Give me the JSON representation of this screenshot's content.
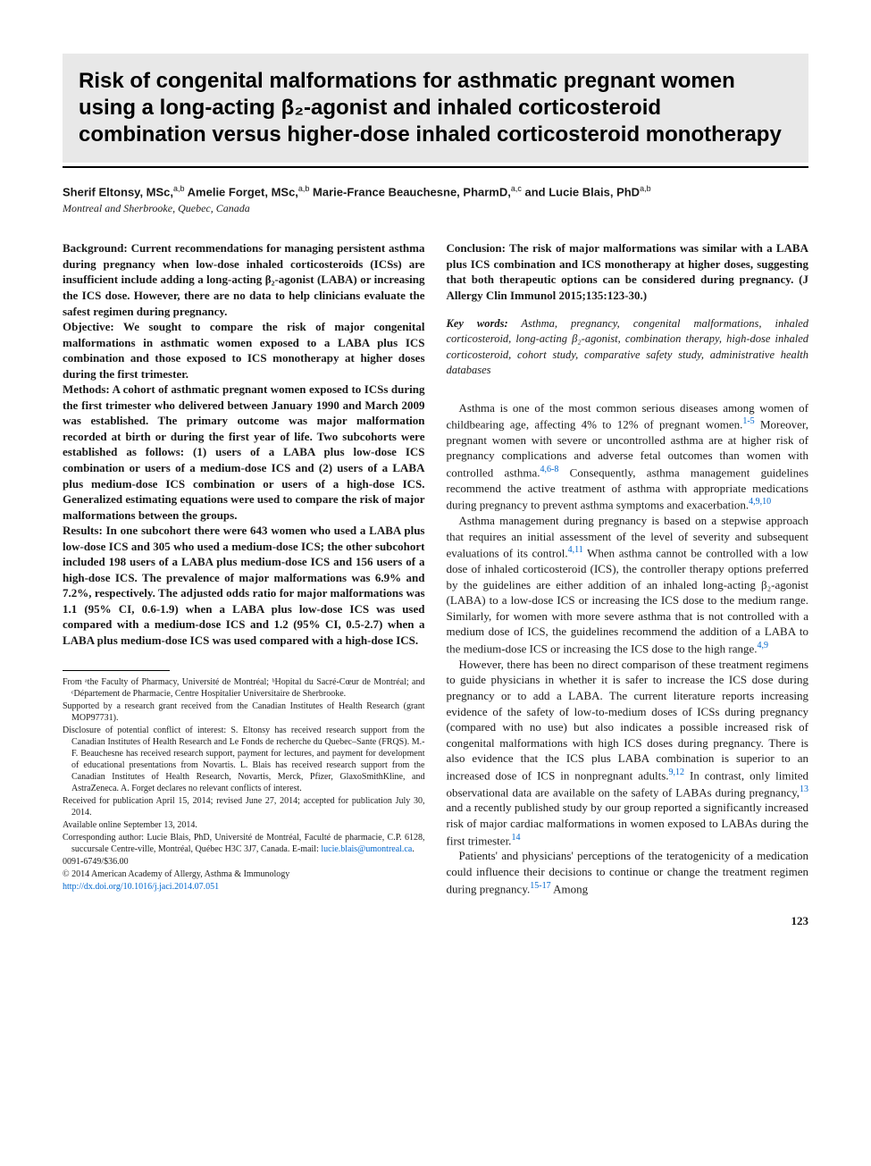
{
  "title": "Risk of congenital malformations for asthmatic pregnant women using a long-acting β₂-agonist and inhaled corticosteroid combination versus higher-dose inhaled corticosteroid monotherapy",
  "authors_html": "Sherif Eltonsy, MSc,<sup>a,b</sup> Amelie Forget, MSc,<sup>a,b</sup> Marie-France Beauchesne, PharmD,<sup>a,c</sup> and Lucie Blais, PhD<sup>a,b</sup>",
  "affiliation_location": "Montreal and Sherbrooke, Quebec, Canada",
  "abstract": {
    "background": "Current recommendations for managing persistent asthma during pregnancy when low-dose inhaled corticosteroids (ICSs) are insufficient include adding a long-acting β₂-agonist (LABA) or increasing the ICS dose. However, there are no data to help clinicians evaluate the safest regimen during pregnancy.",
    "objective": "We sought to compare the risk of major congenital malformations in asthmatic women exposed to a LABA plus ICS combination and those exposed to ICS monotherapy at higher doses during the first trimester.",
    "methods": "A cohort of asthmatic pregnant women exposed to ICSs during the first trimester who delivered between January 1990 and March 2009 was established. The primary outcome was major malformation recorded at birth or during the first year of life. Two subcohorts were established as follows: (1) users of a LABA plus low-dose ICS combination or users of a medium-dose ICS and (2) users of a LABA plus medium-dose ICS combination or users of a high-dose ICS. Generalized estimating equations were used to compare the risk of major malformations between the groups.",
    "results": "In one subcohort there were 643 women who used a LABA plus low-dose ICS and 305 who used a medium-dose ICS; the other subcohort included 198 users of a LABA plus medium-dose ICS and 156 users of a high-dose ICS. The prevalence of major malformations was 6.9% and 7.2%, respectively. The adjusted odds ratio for major malformations was 1.1 (95% CI, 0.6-1.9) when a LABA plus low-dose ICS was used compared with a medium-dose ICS and 1.2 (95% CI, 0.5-2.7) when a LABA plus medium-dose ICS was used compared with a high-dose ICS.",
    "conclusion": "The risk of major malformations was similar with a LABA plus ICS combination and ICS monotherapy at higher doses, suggesting that both therapeutic options can be considered during pregnancy. (J Allergy Clin Immunol 2015;135:123-30.)"
  },
  "keywords_label": "Key words:",
  "keywords": "Asthma, pregnancy, congenital malformations, inhaled corticosteroid, long-acting β₂-agonist, combination therapy, high-dose inhaled corticosteroid, cohort study, comparative safety study, administrative health databases",
  "body": {
    "p1_a": "Asthma is one of the most common serious diseases among women of childbearing age, affecting 4% to 12% of pregnant women.",
    "p1_ref1": "1-5",
    "p1_b": " Moreover, pregnant women with severe or uncontrolled asthma are at higher risk of pregnancy complications and adverse fetal outcomes than women with controlled asthma.",
    "p1_ref2": "4,6-8",
    "p1_c": " Consequently, asthma management guidelines recommend the active treatment of asthma with appropriate medications during pregnancy to prevent asthma symptoms and exacerbation.",
    "p1_ref3": "4,9,10",
    "p2_a": "Asthma management during pregnancy is based on a stepwise approach that requires an initial assessment of the level of severity and subsequent evaluations of its control.",
    "p2_ref1": "4,11",
    "p2_b": " When asthma cannot be controlled with a low dose of inhaled corticosteroid (ICS), the controller therapy options preferred by the guidelines are either addition of an inhaled long-acting β₂-agonist (LABA) to a low-dose ICS or increasing the ICS dose to the medium range. Similarly, for women with more severe asthma that is not controlled with a medium dose of ICS, the guidelines recommend the addition of a LABA to the medium-dose ICS or increasing the ICS dose to the high range.",
    "p2_ref2": "4,9",
    "p3_a": "However, there has been no direct comparison of these treatment regimens to guide physicians in whether it is safer to increase the ICS dose during pregnancy or to add a LABA. The current literature reports increasing evidence of the safety of low-to-medium doses of ICSs during pregnancy (compared with no use) but also indicates a possible increased risk of congenital malformations with high ICS doses during pregnancy. There is also evidence that the ICS plus LABA combination is superior to an increased dose of ICS in nonpregnant adults.",
    "p3_ref1": "9,12",
    "p3_b": " In contrast, only limited observational data are available on the safety of LABAs during pregnancy,",
    "p3_ref2": "13",
    "p3_c": " and a recently published study by our group reported a significantly increased risk of major cardiac malformations in women exposed to LABAs during the first trimester.",
    "p3_ref3": "14",
    "p4_a": "Patients' and physicians' perceptions of the teratogenicity of a medication could influence their decisions to continue or change the treatment regimen during pregnancy.",
    "p4_ref1": "15-17",
    "p4_b": " Among"
  },
  "footnotes": {
    "from": "From ᵃthe Faculty of Pharmacy, Université de Montréal; ᵇHopital du Sacré-Cœur de Montréal; and ᶜDépartement de Pharmacie, Centre Hospitalier Universitaire de Sherbrooke.",
    "supported": "Supported by a research grant received from the Canadian Institutes of Health Research (grant MOP97731).",
    "disclosure": "Disclosure of potential conflict of interest: S. Eltonsy has received research support from the Canadian Institutes of Health Research and Le Fonds de recherche du Quebec–Sante (FRQS). M.-F. Beauchesne has received research support, payment for lectures, and payment for development of educational presentations from Novartis. L. Blais has received research support from the Canadian Institutes of Health Research, Novartis, Merck, Pfizer, GlaxoSmithKline, and AstraZeneca. A. Forget declares no relevant conflicts of interest.",
    "received": "Received for publication April 15, 2014; revised June 27, 2014; accepted for publication July 30, 2014.",
    "available": "Available online September 13, 2014.",
    "corresponding_a": "Corresponding author: Lucie Blais, PhD, Université de Montréal, Faculté de pharmacie, C.P. 6128, succursale Centre-ville, Montréal, Québec H3C 3J7, Canada. E-mail: ",
    "corresponding_email": "lucie.blais@umontreal.ca",
    "corresponding_b": ".",
    "issn": "0091-6749/$36.00",
    "copyright": "© 2014 American Academy of Allergy, Asthma & Immunology",
    "doi": "http://dx.doi.org/10.1016/j.jaci.2014.07.051"
  },
  "page_number": "123"
}
